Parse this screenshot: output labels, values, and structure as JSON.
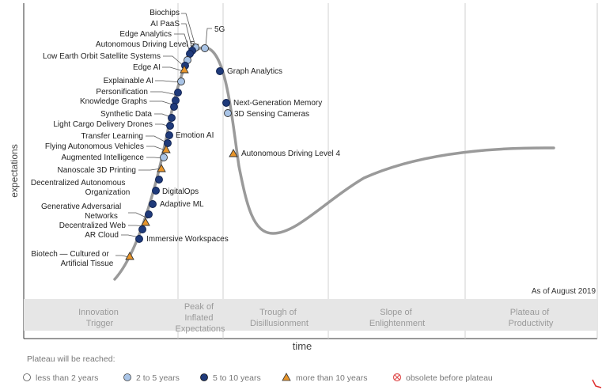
{
  "axes": {
    "y_label": "expectations",
    "x_label": "time"
  },
  "as_of": "As of August 2019",
  "phases": [
    {
      "lines": [
        "Innovation",
        "Trigger"
      ]
    },
    {
      "lines": [
        "Peak of",
        "Inflated",
        "Expectations"
      ]
    },
    {
      "lines": [
        "Trough of",
        "Disillusionment"
      ]
    },
    {
      "lines": [
        "Slope of",
        "Enlightenment"
      ]
    },
    {
      "lines": [
        "Plateau of",
        "Productivity"
      ]
    }
  ],
  "legend": {
    "title": "Plateau will be reached:",
    "items": [
      {
        "label": "less than 2 years",
        "marker": "circle-white"
      },
      {
        "label": "2 to 5 years",
        "marker": "circle-light"
      },
      {
        "label": "5 to 10 years",
        "marker": "circle-dark"
      },
      {
        "label": "more than 10 years",
        "marker": "triangle"
      },
      {
        "label": "obsolete before plateau",
        "marker": "obsolete"
      }
    ]
  },
  "colors": {
    "curve": "#9a9a9a",
    "dark_marker": "#1f3a7a",
    "light_marker": "#a9c4e6",
    "triangle_marker": "#e8952a",
    "obsolete_marker": "#e05050",
    "band": "#e6e6e6",
    "phase_text": "#9a9a9a"
  },
  "technologies": [
    {
      "name": "Biochips",
      "marker": "circle-light"
    },
    {
      "name": "AI PaaS",
      "marker": "circle-dark"
    },
    {
      "name": "Edge Analytics",
      "marker": "circle-dark"
    },
    {
      "name": "Autonomous Driving Level 5",
      "marker": "circle-light"
    },
    {
      "name": "Low Earth Orbit Satellite Systems",
      "marker": "circle-dark"
    },
    {
      "name": "Edge AI",
      "marker": "triangle"
    },
    {
      "name": "Explainable AI",
      "marker": "circle-light"
    },
    {
      "name": "Personification",
      "marker": "circle-dark"
    },
    {
      "name": "Knowledge Graphs",
      "marker": "circle-dark"
    },
    {
      "name": "Synthetic Data",
      "marker": "circle-dark"
    },
    {
      "name": "Light Cargo Delivery Drones",
      "marker": "circle-dark"
    },
    {
      "name": "Transfer Learning",
      "marker": "circle-dark"
    },
    {
      "name": "Flying Autonomous Vehicles",
      "marker": "triangle"
    },
    {
      "name": "Augmented Intelligence",
      "marker": "circle-light"
    },
    {
      "name": "Nanoscale 3D Printing",
      "marker": "triangle"
    },
    {
      "name": "Decentralized Autonomous Organization",
      "marker": "circle-dark"
    },
    {
      "name": "Generative Adversarial Networks",
      "marker": "circle-dark"
    },
    {
      "name": "Decentralized Web",
      "marker": "triangle"
    },
    {
      "name": "AR Cloud",
      "marker": "circle-dark"
    },
    {
      "name": "Biotech — Cultured or Artificial Tissue",
      "marker": "triangle"
    },
    {
      "name": "5G",
      "marker": "circle-light"
    },
    {
      "name": "Graph Analytics",
      "marker": "circle-dark"
    },
    {
      "name": "Next-Generation Memory",
      "marker": "circle-dark"
    },
    {
      "name": "3D Sensing Cameras",
      "marker": "circle-light"
    },
    {
      "name": "Autonomous Driving Level 4",
      "marker": "triangle"
    },
    {
      "name": "Emotion AI",
      "marker": "circle-dark"
    },
    {
      "name": "DigitalOps",
      "marker": "circle-dark"
    },
    {
      "name": "Adaptive ML",
      "marker": "circle-dark"
    },
    {
      "name": "Immersive Workspaces",
      "marker": "circle-dark"
    }
  ]
}
